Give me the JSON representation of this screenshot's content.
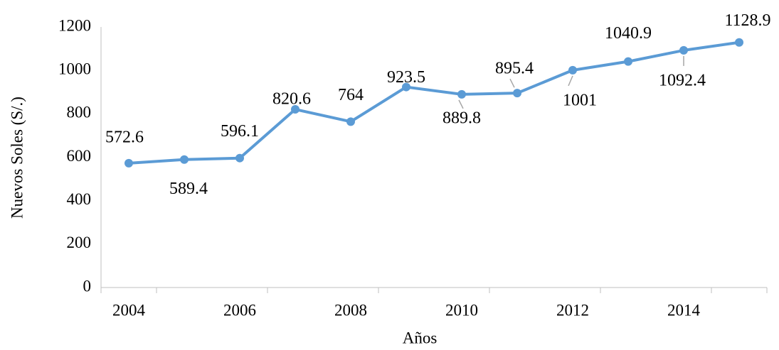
{
  "chart_data": {
    "type": "line",
    "x_label": "Años",
    "y_label": "Nuevos Soles (S/.)",
    "categories": [
      "2004",
      null,
      "2006",
      null,
      "2008",
      null,
      "2010",
      null,
      "2012",
      null,
      "2014",
      null
    ],
    "series": [
      {
        "name": null,
        "color": "#5b9bd5",
        "values": [
          572.6,
          589.4,
          596.1,
          820.6,
          764,
          923.5,
          889.8,
          895.4,
          1001,
          1040.9,
          1092.4,
          1128.9
        ]
      }
    ],
    "ylim": [
      0,
      1200
    ],
    "yticks": [
      0,
      200,
      400,
      600,
      800,
      1000,
      1200
    ],
    "grid": false
  }
}
